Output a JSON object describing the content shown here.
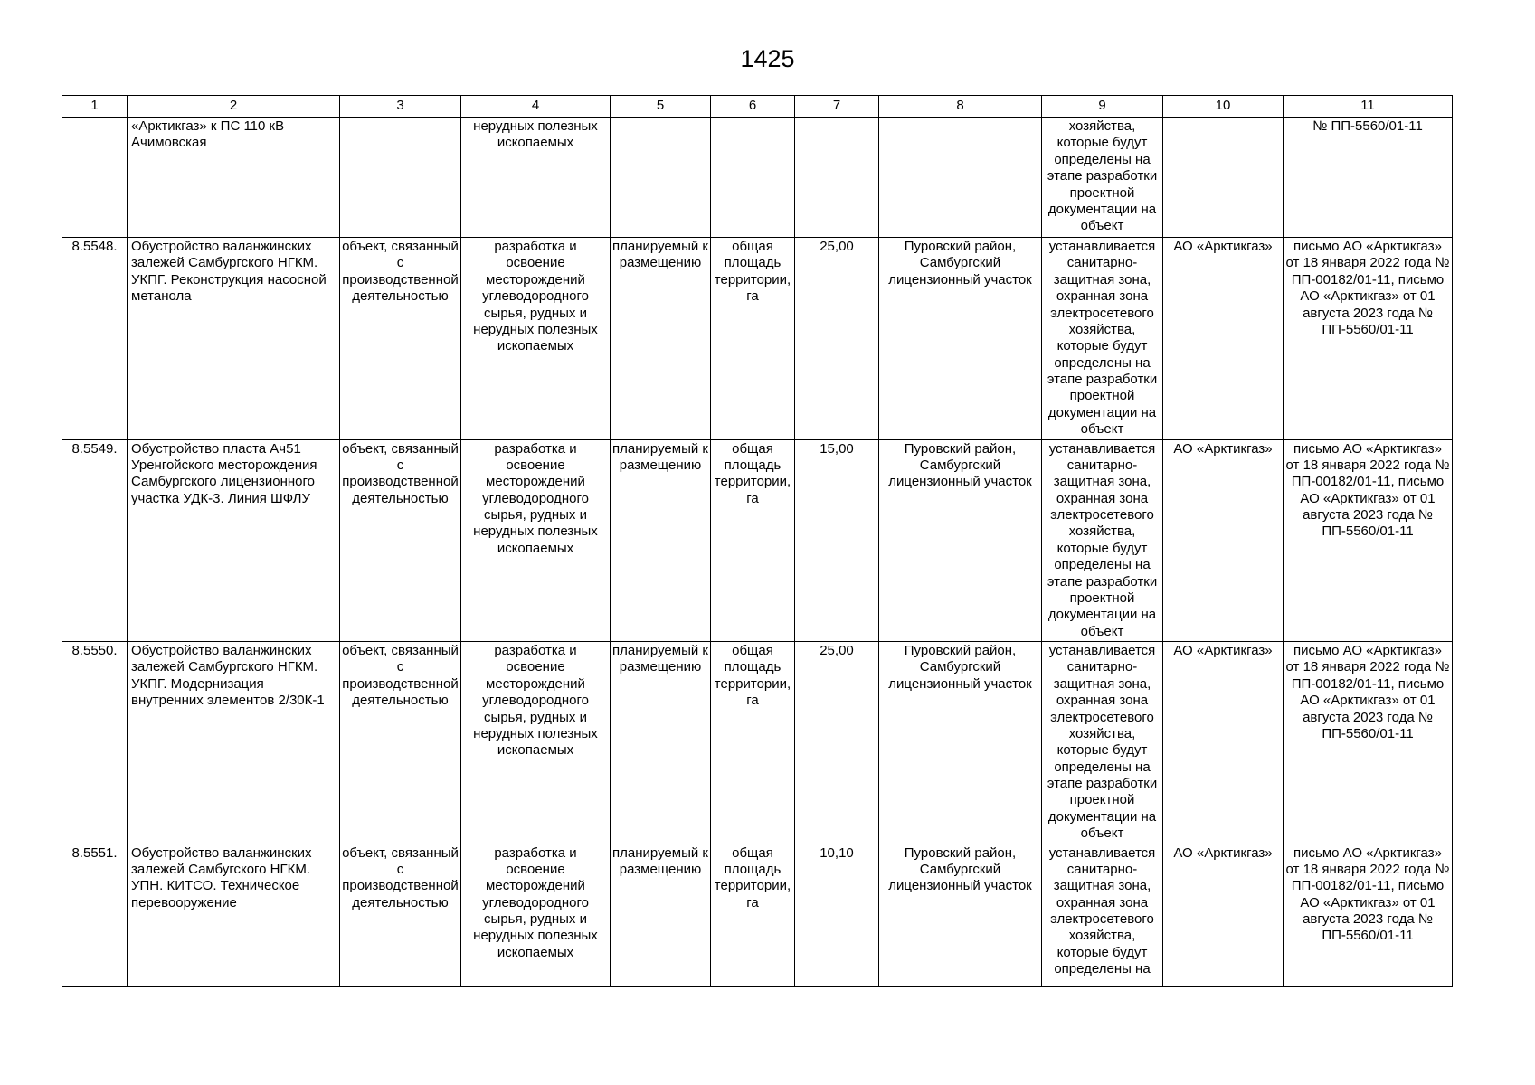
{
  "page_number": "1425",
  "colors": {
    "text": "#000000",
    "background": "#ffffff",
    "border": "#000000"
  },
  "table": {
    "column_numbers": [
      "1",
      "2",
      "3",
      "4",
      "5",
      "6",
      "7",
      "8",
      "9",
      "10",
      "11"
    ],
    "rows": [
      {
        "cells": [
          "",
          "«Арктикгаз» к ПС 110 кВ Ачимовская",
          "",
          "нерудных полезных ископаемых",
          "",
          "",
          "",
          "",
          "хозяйства, которые будут определены на этапе разработки проектной документации на объект",
          "",
          "№ ПП-5560/01-11"
        ]
      },
      {
        "cells": [
          "8.5548.",
          "Обустройство валанжинских залежей Самбургского НГКМ. УКПГ. Реконструкция насосной метанола",
          "объект, связанный с производственной деятельностью",
          "разработка и освоение месторождений углеводородного сырья, рудных и нерудных полезных ископаемых",
          "планируемый к размещению",
          "общая площадь территории, га",
          "25,00",
          "Пуровский район, Самбургский лицензионный участок",
          "устанавливается санитарно-защитная зона, охранная зона электросетевого хозяйства, которые будут определены на этапе разработки проектной документации на объект",
          "АО «Арктикгаз»",
          "письмо АО «Арктикгаз» от 18 января 2022 года № ПП-00182/01-11, письмо АО «Арктикгаз» от 01 августа 2023 года № ПП-5560/01-11"
        ]
      },
      {
        "cells": [
          "8.5549.",
          "Обустройство пласта Ач51 Уренгойского месторождения Самбургского лицензионного участка УДК-3. Линия ШФЛУ",
          "объект, связанный с производственной деятельностью",
          "разработка и освоение месторождений углеводородного сырья, рудных и нерудных полезных ископаемых",
          "планируемый к размещению",
          "общая площадь территории, га",
          "15,00",
          "Пуровский район, Самбургский лицензионный участок",
          "устанавливается санитарно-защитная зона, охранная зона электросетевого хозяйства, которые будут определены на этапе разработки проектной документации на объект",
          "АО «Арктикгаз»",
          "письмо АО «Арктикгаз» от 18 января 2022 года № ПП-00182/01-11, письмо АО «Арктикгаз» от 01 августа 2023 года № ПП-5560/01-11"
        ]
      },
      {
        "cells": [
          "8.5550.",
          "Обустройство валанжинских залежей Самбургского НГКМ. УКПГ. Модернизация внутренних элементов 2/30К-1",
          "объект, связанный с производственной деятельностью",
          "разработка и освоение месторождений углеводородного сырья, рудных и нерудных полезных ископаемых",
          "планируемый к размещению",
          "общая площадь территории, га",
          "25,00",
          "Пуровский район, Самбургский лицензионный участок",
          "устанавливается санитарно-защитная зона, охранная зона электросетевого хозяйства, которые будут определены на этапе разработки проектной документации на объект",
          "АО «Арктикгаз»",
          "письмо АО «Арктикгаз» от 18 января 2022 года № ПП-00182/01-11, письмо АО «Арктикгаз» от 01 августа 2023 года № ПП-5560/01-11"
        ]
      },
      {
        "cells": [
          "8.5551.",
          "Обустройство валанжинских залежей Самбугского НГКМ. УПН. КИТСО. Техническое перевооружение",
          "объект, связанный с производственной деятельностью",
          "разработка и освоение месторождений углеводородного сырья, рудных и нерудных полезных ископаемых",
          "планируемый к размещению",
          "общая площадь территории, га",
          "10,10",
          "Пуровский район, Самбургский лицензионный участок",
          "устанавливается санитарно-защитная зона, охранная зона электросетевого хозяйства, которые будут определены на",
          "АО «Арктикгаз»",
          "письмо АО «Арктикгаз» от 18 января 2022 года № ПП-00182/01-11, письмо АО «Арктикгаз» от 01 августа 2023 года № ПП-5560/01-11"
        ]
      }
    ]
  }
}
